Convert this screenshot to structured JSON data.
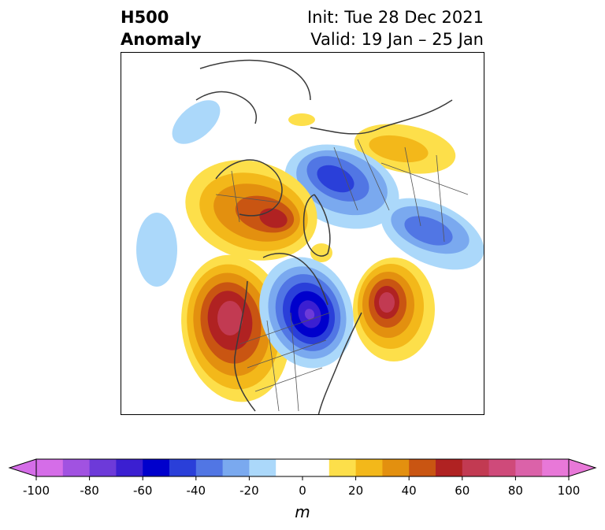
{
  "title": {
    "left_line1": "H500",
    "left_line2": "Anomaly",
    "right_line1": "Init: Tue 28 Dec 2021",
    "right_line2": "Valid: 19 Jan – 25 Jan"
  },
  "colorbar": {
    "unit": "m",
    "ticks": [
      "-100",
      "-80",
      "-60",
      "-40",
      "-20",
      "0",
      "20",
      "40",
      "60",
      "80",
      "100"
    ],
    "colors": [
      "#d56de8",
      "#a152e1",
      "#6d3ad9",
      "#3b1fd1",
      "#0000cc",
      "#2a3fd9",
      "#5176e4",
      "#7aa9ef",
      "#abd8fa",
      "#ffffff",
      "#ffffff",
      "#fddf4a",
      "#f3b81a",
      "#e3900f",
      "#c95512",
      "#b02222",
      "#c23a52",
      "#cf4a7a",
      "#db62a9",
      "#e878d8"
    ],
    "under_color": "#d56de8",
    "over_color": "#e878d8"
  },
  "colors": {
    "coast": "#3a3a3a",
    "border": "#555555"
  }
}
